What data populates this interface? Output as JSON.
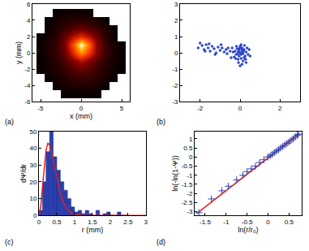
{
  "chart_data": [
    {
      "type": "heatmap",
      "title": "(a)",
      "xlabel": "x (mm)",
      "ylabel": "y (mm)",
      "xlim": [
        -6,
        6
      ],
      "ylim": [
        -6,
        6
      ],
      "xticks": [
        -5,
        0,
        5
      ],
      "yticks": [
        -6,
        -4,
        -2,
        0,
        2,
        4,
        6
      ],
      "grid": false,
      "x": [
        -5,
        -4,
        -3,
        -2,
        -1,
        0,
        1,
        2,
        3,
        4,
        5
      ],
      "y": [
        -6,
        -5,
        -4,
        -3,
        -2,
        -1,
        0,
        1,
        2,
        3,
        4,
        5,
        6
      ],
      "z": [
        [
          null,
          null,
          null,
          null,
          null,
          null,
          null,
          null,
          null,
          null,
          null
        ],
        [
          null,
          null,
          null,
          0.05,
          0.05,
          0.05,
          0.05,
          0.05,
          null,
          null,
          null
        ],
        [
          null,
          null,
          0.05,
          0.08,
          0.1,
          0.1,
          0.1,
          0.08,
          0.05,
          null,
          null
        ],
        [
          null,
          0.05,
          0.08,
          0.1,
          0.15,
          0.15,
          0.15,
          0.12,
          0.08,
          0.05,
          null
        ],
        [
          0.05,
          0.08,
          0.1,
          0.15,
          0.2,
          0.25,
          0.2,
          0.15,
          0.1,
          0.06,
          0.03
        ],
        [
          0.05,
          0.08,
          0.12,
          0.2,
          0.3,
          0.4,
          0.3,
          0.2,
          0.12,
          0.08,
          0.04
        ],
        [
          0.05,
          0.1,
          0.15,
          0.25,
          0.5,
          0.75,
          0.55,
          0.3,
          0.15,
          0.08,
          0.05
        ],
        [
          0.05,
          0.1,
          0.15,
          0.3,
          0.6,
          1.0,
          0.65,
          0.3,
          0.15,
          0.08,
          0.05
        ],
        [
          0.05,
          0.08,
          0.12,
          0.25,
          0.4,
          0.5,
          0.4,
          0.25,
          0.12,
          0.06,
          null
        ],
        [
          null,
          0.06,
          0.1,
          0.15,
          0.2,
          0.25,
          0.2,
          0.15,
          0.1,
          0.05,
          null
        ],
        [
          null,
          0.05,
          0.08,
          0.1,
          0.12,
          0.12,
          0.1,
          0.08,
          0.05,
          null,
          null
        ],
        [
          null,
          null,
          0.05,
          0.06,
          0.06,
          0.06,
          0.05,
          null,
          null,
          null,
          null
        ],
        [
          null,
          null,
          null,
          null,
          null,
          null,
          null,
          null,
          null,
          null,
          null
        ]
      ]
    },
    {
      "type": "scatter",
      "title": "(b)",
      "xlim": [
        -3,
        3
      ],
      "ylim": [
        -3,
        3
      ],
      "xticks": [
        -2,
        0,
        2
      ],
      "yticks": [
        -3,
        -2,
        -1,
        0,
        1,
        2,
        3
      ],
      "grid": false,
      "color": "#2a45c8",
      "marker": "dot",
      "x": [
        0,
        0.1,
        -0.1,
        0.05,
        -0.05,
        0.15,
        0.2,
        -0.15,
        0.1,
        0,
        -0.2,
        0.25,
        0.3,
        -0.25,
        0.05,
        -0.1,
        0.15,
        0.2,
        -0.3,
        0.35,
        -0.05,
        0.08,
        -0.12,
        0.02,
        0.12,
        -0.02,
        0.28,
        -0.18,
        0.05,
        -0.08,
        0.1,
        0.22,
        -0.35,
        0.4,
        -0.22,
        0.18,
        -0.06,
        0.3,
        0,
        -0.4,
        -0.5,
        -0.6,
        -0.7,
        -0.8,
        -0.9,
        -1.0,
        -1.1,
        -1.2,
        -1.3,
        -1.4,
        -1.5,
        -1.6,
        -1.7,
        -1.8,
        -1.9,
        -2.0,
        -2.1,
        -1.75,
        -1.25,
        -0.65,
        -0.95,
        -1.55,
        -0.45,
        0.5,
        0.45
      ],
      "values": [
        0,
        0.1,
        0.05,
        -0.1,
        -0.2,
        -0.05,
        0.2,
        0.25,
        0.3,
        0.4,
        -0.1,
        -0.2,
        0.05,
        0.1,
        -0.35,
        -0.4,
        -0.5,
        -0.3,
        -0.25,
        0.3,
        0.15,
        0.22,
        -0.08,
        -0.05,
        0,
        0.3,
        -0.4,
        0.4,
        0.5,
        -0.6,
        -0.7,
        0.45,
        0.05,
        -0.1,
        -0.35,
        0.12,
        0.22,
        -0.6,
        -0.8,
        0.3,
        0.1,
        0.3,
        0.2,
        0.05,
        0.3,
        0.15,
        0.35,
        0,
        0.25,
        0.4,
        0.1,
        0.3,
        0.5,
        0.2,
        0.45,
        0.6,
        0.3,
        0.1,
        -0.1,
        -0.05,
        0.5,
        0.55,
        -0.3,
        -0.2,
        0.2
      ]
    },
    {
      "type": "histogram",
      "title": "(c)",
      "xlabel": "r (mm)",
      "ylabel": "dΨ/dr",
      "xlim": [
        0,
        3
      ],
      "ylim": [
        0,
        50
      ],
      "xticks": [
        0,
        0.5,
        1,
        1.5,
        2,
        2.5,
        3
      ],
      "yticks": [
        0,
        10,
        20,
        30,
        40,
        50
      ],
      "grid": false,
      "series": [
        {
          "type": "bar",
          "color": "#2a3fb0",
          "bins": [
            0,
            0.1,
            0.2,
            0.3,
            0.4,
            0.5,
            0.6,
            0.7,
            0.8,
            0.9,
            1.0,
            1.1,
            1.2,
            1.3,
            1.4,
            1.5,
            1.6,
            1.7,
            1.8,
            1.9,
            2.0,
            2.1,
            2.2,
            2.3,
            2.4,
            2.5
          ],
          "values": [
            3,
            20,
            38,
            50,
            35,
            27,
            20,
            15,
            10,
            5,
            2,
            3,
            1,
            3,
            1,
            0,
            3,
            0,
            1,
            2,
            0,
            0,
            2,
            0,
            0
          ]
        },
        {
          "type": "line",
          "color": "#e02020",
          "x": [
            0,
            0.05,
            0.1,
            0.15,
            0.2,
            0.25,
            0.3,
            0.35,
            0.4,
            0.5,
            0.6,
            0.7,
            0.8,
            0.9,
            1.0,
            1.2,
            1.5,
            3
          ],
          "values": [
            0,
            5,
            17,
            30,
            39,
            43,
            42,
            38,
            33,
            22,
            13,
            7,
            3.5,
            1.5,
            0.6,
            0.1,
            0,
            0
          ]
        }
      ]
    },
    {
      "type": "scatter",
      "title": "(d)",
      "xlabel": "ln(r/r₀)",
      "ylabel": "ln(-ln(1-Ψ))",
      "xlim": [
        -1.75,
        0.8
      ],
      "ylim": [
        -3.2,
        1.4
      ],
      "xticks": [
        -1.5,
        -1,
        -0.5,
        0,
        0.5
      ],
      "yticks": [
        -3,
        -2.5,
        -2,
        -1.5,
        -1,
        -0.5,
        0,
        0.5,
        1
      ],
      "grid": false,
      "series": [
        {
          "type": "line",
          "color": "#e02020",
          "x": [
            -1.7,
            0.75
          ],
          "values": [
            -3.1,
            1.3
          ]
        },
        {
          "type": "scatter",
          "color": "#2a3fb0",
          "marker": "plus",
          "x": [
            -1.65,
            -1.35,
            -1.1,
            -0.95,
            -0.75,
            -0.6,
            -0.5,
            -0.4,
            -0.3,
            -0.2,
            -0.1,
            0,
            0.05,
            0.1,
            0.15,
            0.2,
            0.25,
            0.3,
            0.35,
            0.4,
            0.45,
            0.5,
            0.55,
            0.6,
            0.65,
            0.7,
            0.72
          ],
          "values": [
            -3.05,
            -2.3,
            -1.85,
            -1.6,
            -1.25,
            -1.0,
            -0.8,
            -0.65,
            -0.5,
            -0.3,
            -0.15,
            0,
            0.07,
            0.15,
            0.25,
            0.33,
            0.4,
            0.5,
            0.58,
            0.66,
            0.75,
            0.82,
            0.92,
            1.0,
            1.1,
            1.2,
            1.25
          ]
        }
      ]
    }
  ]
}
